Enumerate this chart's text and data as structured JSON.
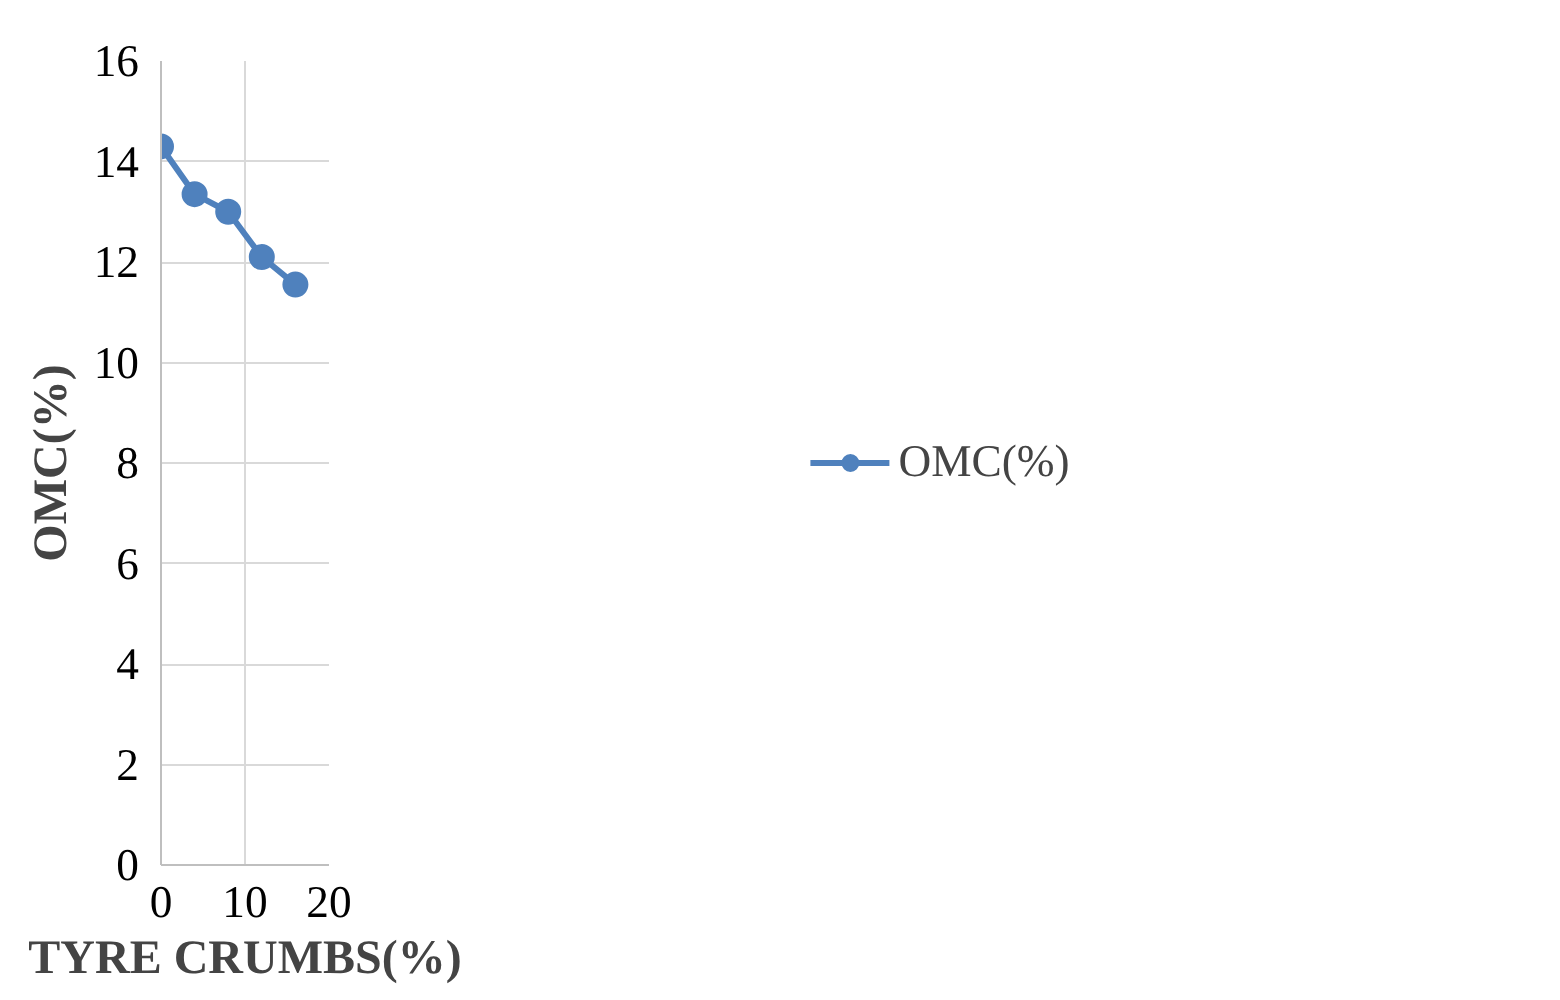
{
  "chart_data": {
    "type": "line",
    "xlabel": "TYRE CRUMBS(%)",
    "ylabel": "OMC(%)",
    "x": [
      0,
      4,
      8,
      12,
      16
    ],
    "series": [
      {
        "name": "OMC(%)",
        "color": "#4f81bd",
        "values": [
          14.3,
          13.35,
          13.0,
          12.1,
          11.55
        ]
      }
    ],
    "xlim": [
      0,
      20
    ],
    "xticks": [
      0,
      10,
      20
    ],
    "ylim": [
      0,
      16
    ],
    "yticks": [
      0,
      2,
      4,
      6,
      8,
      10,
      12,
      14,
      16
    ],
    "grid": true,
    "legend": "right",
    "marker": "circle",
    "line_style": "solid"
  }
}
